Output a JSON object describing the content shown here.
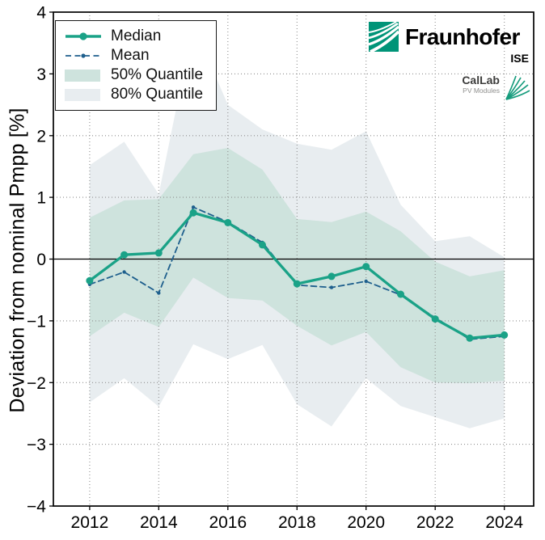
{
  "branding": {
    "fraunhofer": {
      "name": "Fraunhofer",
      "institute": "ISE"
    },
    "callab": {
      "line1": "CalLab",
      "line2": "PV Modules"
    }
  },
  "chart_data": {
    "type": "line",
    "title": "",
    "xlabel": "",
    "ylabel": "Deviation from nominal Pmpp [%]",
    "xlim": [
      2010.95,
      2024.85
    ],
    "ylim": [
      -4,
      4
    ],
    "grid": "dotted",
    "zero_line": true,
    "legend_position": "upper-left",
    "x": [
      2012,
      2013,
      2014,
      2015,
      2016,
      2017,
      2018,
      2019,
      2020,
      2021,
      2022,
      2023,
      2024
    ],
    "xticks": {
      "values": [
        2012,
        2014,
        2016,
        2018,
        2020,
        2022,
        2024
      ],
      "labels": [
        "2012",
        "2014",
        "2016",
        "2018",
        "2020",
        "2022",
        "2024"
      ]
    },
    "yticks": {
      "values": [
        -4,
        -3,
        -2,
        -1,
        0,
        1,
        2,
        3,
        4
      ],
      "labels": [
        "−4",
        "−3",
        "−2",
        "−1",
        "0",
        "1",
        "2",
        "3",
        "4"
      ]
    },
    "series": [
      {
        "name": "Median",
        "style": "solid",
        "color": "#1aa287",
        "marker": "circle",
        "values": [
          -0.35,
          0.07,
          0.1,
          0.75,
          0.59,
          0.23,
          -0.4,
          -0.28,
          -0.12,
          -0.57,
          -0.97,
          -1.28,
          -1.23
        ]
      },
      {
        "name": "Mean",
        "style": "dashed",
        "color": "#1e5f8d",
        "marker": "dot",
        "values": [
          -0.41,
          -0.21,
          -0.55,
          0.84,
          0.6,
          0.27,
          -0.42,
          -0.46,
          -0.36,
          -0.58,
          -0.95,
          -1.3,
          -1.25
        ]
      }
    ],
    "bands": [
      {
        "name": "50% Quantile",
        "color": "#cee3dd",
        "z": 2,
        "upper": [
          0.67,
          0.95,
          0.97,
          1.7,
          1.8,
          1.45,
          0.65,
          0.6,
          0.77,
          0.45,
          -0.04,
          -0.28,
          -0.18
        ],
        "lower": [
          -1.25,
          -0.87,
          -1.1,
          -0.3,
          -0.63,
          -0.67,
          -1.08,
          -1.4,
          -1.18,
          -1.75,
          -2.0,
          -2.01,
          -1.97
        ]
      },
      {
        "name": "80% Quantile",
        "color": "#e8edf0",
        "z": 1,
        "upper": [
          1.52,
          1.9,
          1.05,
          3.8,
          2.5,
          2.1,
          1.87,
          1.77,
          2.07,
          0.88,
          0.29,
          0.37,
          0.03
        ],
        "lower": [
          -2.32,
          -1.93,
          -2.39,
          -1.38,
          -1.62,
          -1.39,
          -2.35,
          -2.71,
          -1.93,
          -2.38,
          -2.56,
          -2.74,
          -2.58
        ]
      }
    ],
    "legend": {
      "entries": [
        "Median",
        "Mean",
        "50% Quantile",
        "80% Quantile"
      ]
    }
  },
  "colors": {
    "median": "#1aa287",
    "mean": "#1e5f8d",
    "quantile50": "#cee3dd",
    "quantile80": "#e8edf0",
    "grid": "#8f8f8f",
    "axis": "#000000",
    "fraunhofer_green": "#009478",
    "callab_green": "#179c7d"
  }
}
